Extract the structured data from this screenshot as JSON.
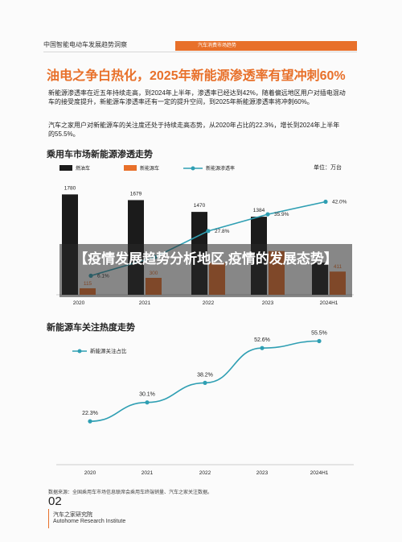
{
  "header": {
    "report_title": "中国智能电动车发展趋势洞察",
    "section_tab": "汽车消费市场趋势"
  },
  "main_title": "油电之争白热化，2025年新能源渗透率有望冲刺60%",
  "paragraph1": "新能源渗透率在近五年持续走高，到2024年上半年，渗透率已经达到42%，随着偏远地区用户对插电混动车的接受度提升，新能源车渗透率还有一定的提升空间，到2025年新能源渗透率将冲刺60%。",
  "paragraph2": "汽车之家用户对新能源车的关注度还处于持续走高态势，从2020年占比的22.3%，增长到2024年上半年的55.5%。",
  "banner": "【疫情发展趋势分析地区,疫情的发展态势】",
  "footer": {
    "source": "数据来源：全国乘用车市场信息联席会乘用车终端销量、汽车之家关注数据。",
    "page_number": "02",
    "institute_cn": "汽车之家研究院",
    "institute_en": "Autohome Research Institute"
  },
  "colors": {
    "fuel": "#1b1b1b",
    "nev": "#e8702a",
    "line": "#2f9fb3",
    "accent": "#e8702a"
  },
  "chart_data": [
    {
      "type": "bar",
      "title": "乘用车市场新能源渗透走势",
      "unit_label": "单位：万台",
      "categories": [
        "2020",
        "2021",
        "2022",
        "2023",
        "2024H1"
      ],
      "series": [
        {
          "name": "燃油车",
          "values": [
            1780,
            1679,
            1470,
            1384,
            571
          ]
        },
        {
          "name": "新能源车",
          "values": [
            115,
            300,
            567,
            775,
            411
          ]
        }
      ],
      "line_series": {
        "name": "新能源渗透率",
        "values": [
          6.1,
          15.2,
          27.8,
          35.9,
          42.0
        ]
      },
      "value_labels": {
        "fuel": [
          "1780",
          "1679",
          "1470",
          "1384",
          ""
        ],
        "nev": [
          "115",
          "300",
          "",
          "",
          "411"
        ],
        "rate": [
          "6.1%",
          "",
          "27.8%",
          "35.9%",
          "42.0%"
        ]
      },
      "legend_placement": "top-left",
      "ylim": [
        0,
        2000
      ],
      "rate_range": [
        0,
        50
      ]
    },
    {
      "type": "line",
      "title": "新能源车关注热度走势",
      "categories": [
        "2020",
        "2021",
        "2022",
        "2023",
        "2024H1"
      ],
      "series": [
        {
          "name": "新能源关注占比",
          "values": [
            22.3,
            30.1,
            38.2,
            52.6,
            55.5
          ]
        }
      ],
      "value_labels": [
        "22.3%",
        "30.1%",
        "38.2%",
        "52.6%",
        "55.5%"
      ],
      "legend_placement": "top-left",
      "ylim": [
        10,
        60
      ]
    }
  ]
}
